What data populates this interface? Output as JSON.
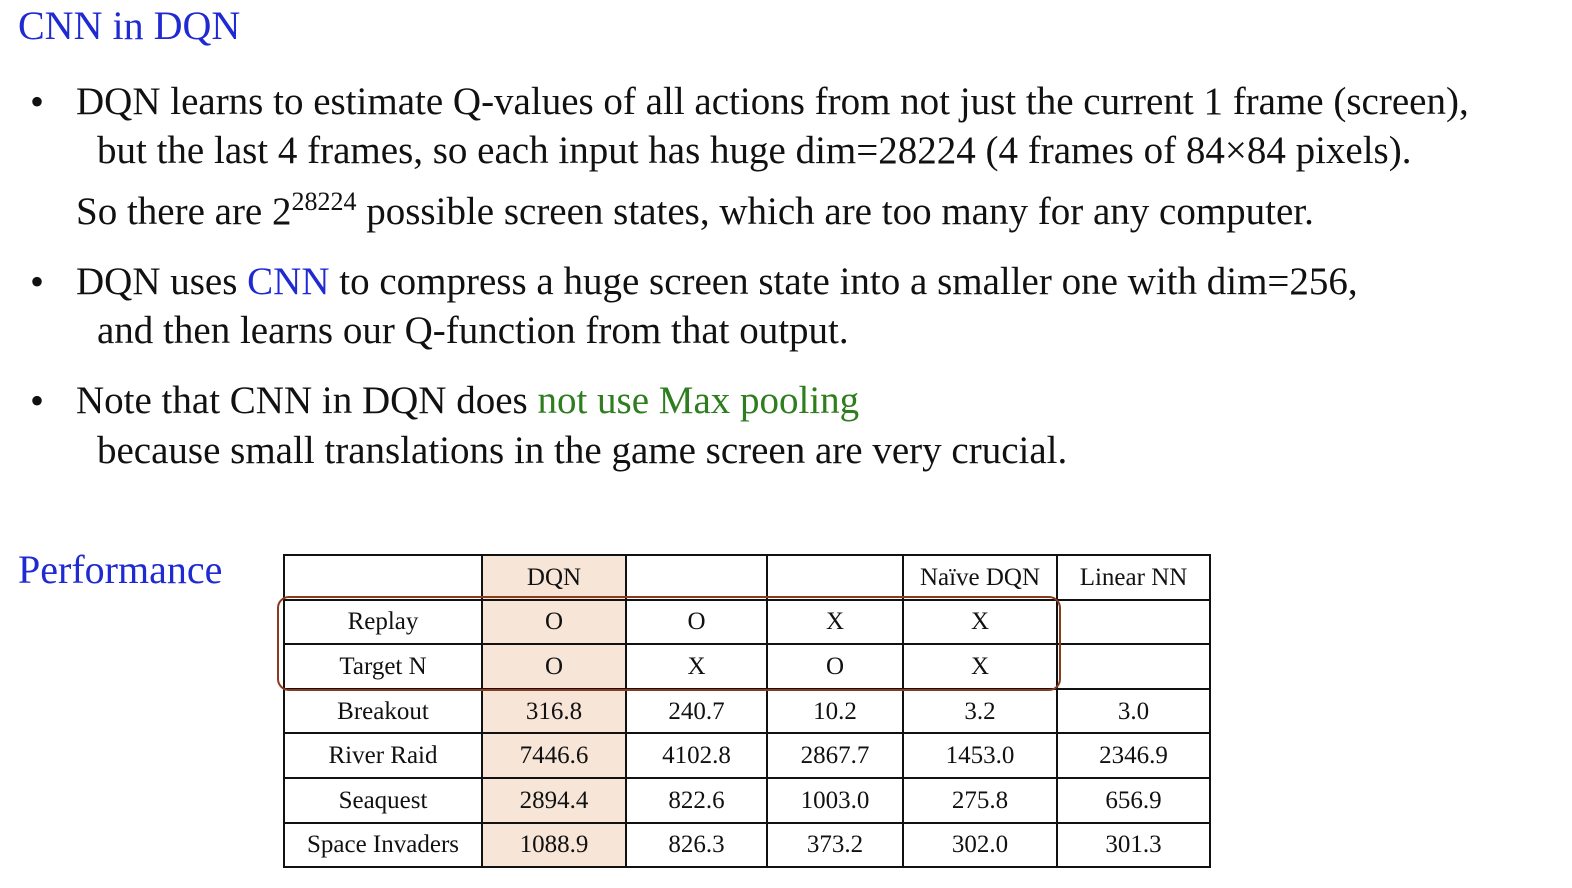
{
  "section1": {
    "title": "CNN in DQN",
    "bullets": [
      {
        "symbol": "•",
        "line1": "DQN learns to estimate Q-values of all actions from not just the current 1 frame (screen),",
        "line2": "but the last 4 frames, so each input has huge dim=28224 (4 frames of 84×84 pixels).",
        "line3_prefix": "So there are 2",
        "line3_sup": "28224",
        "line3_suffix": " possible screen states, which are too many for any computer."
      },
      {
        "symbol": "•",
        "line1_prefix": "DQN uses ",
        "line1_highlight": "CNN",
        "line1_suffix": " to compress a huge screen state into a smaller one with dim=256,",
        "line2": "and then learns our Q-function from that output."
      },
      {
        "symbol": "•",
        "line1_prefix": "Note that CNN in DQN does ",
        "line1_highlight": "not use Max pooling",
        "line2": "because small translations in the game screen are very crucial."
      }
    ]
  },
  "section2": {
    "title": "Performance"
  },
  "table": {
    "header": [
      "",
      "DQN",
      "",
      "",
      "Naïve DQN",
      "Linear NN"
    ],
    "rows": [
      [
        "Replay",
        "O",
        "O",
        "X",
        "X",
        ""
      ],
      [
        "Target N",
        "O",
        "X",
        "O",
        "X",
        ""
      ],
      [
        "Breakout",
        "316.8",
        "240.7",
        "10.2",
        "3.2",
        "3.0"
      ],
      [
        "River Raid",
        "7446.6",
        "4102.8",
        "2867.7",
        "1453.0",
        "2346.9"
      ],
      [
        "Seaquest",
        "2894.4",
        "822.6",
        "1003.0",
        "275.8",
        "656.9"
      ],
      [
        "Space Invaders",
        "1088.9",
        "826.3",
        "373.2",
        "302.0",
        "301.3"
      ]
    ]
  },
  "colors": {
    "heading": "#1f2ad1",
    "cnn_highlight": "#1f2ad1",
    "max_pooling_highlight": "#2e7d1e",
    "dqn_column_bg": "#f7e6d7",
    "highlight_box": "#8b3a1c"
  }
}
